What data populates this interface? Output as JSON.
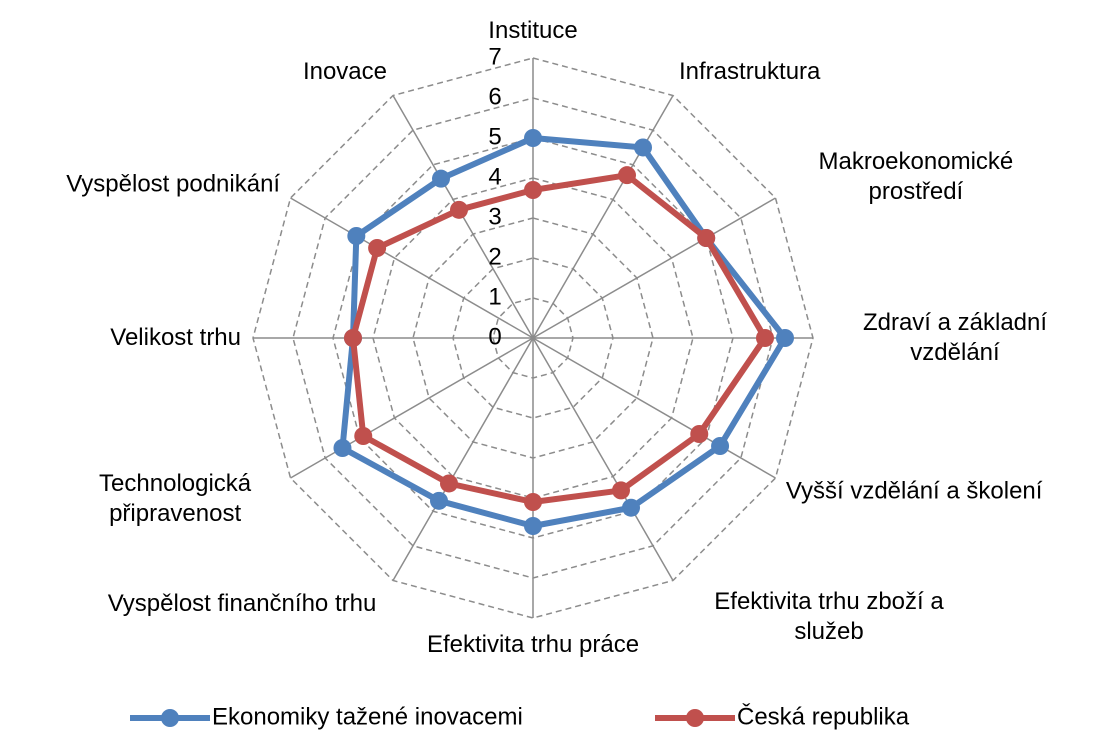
{
  "chart_data": {
    "type": "radar",
    "categories": [
      "Instituce",
      "Infrastruktura",
      "Makroekonomické prostředí",
      "Zdraví a základní vzdělání",
      "Vyšší vzdělání a školení",
      "Efektivita trhu zboží a služeb",
      "Efektivita trhu práce",
      "Vyspělost finančního trhu",
      "Technologická připravenost",
      "Velikost trhu",
      "Vyspělost podnikání",
      "Inovace"
    ],
    "series": [
      {
        "name": "Ekonomiky tažené inovacemi",
        "color": "#4f81bd",
        "values": [
          5.0,
          5.5,
          5.0,
          6.3,
          5.4,
          4.9,
          4.7,
          4.7,
          5.5,
          4.5,
          5.1,
          4.6
        ]
      },
      {
        "name": "Česká republika",
        "color": "#c0504d",
        "values": [
          3.7,
          4.7,
          5.0,
          5.8,
          4.8,
          4.4,
          4.1,
          4.2,
          4.9,
          4.5,
          4.5,
          3.7
        ]
      }
    ],
    "ylim": [
      0,
      7
    ],
    "yticks": [
      0,
      1,
      2,
      3,
      4,
      5,
      6,
      7
    ],
    "grid": true,
    "legend": "bottom"
  }
}
